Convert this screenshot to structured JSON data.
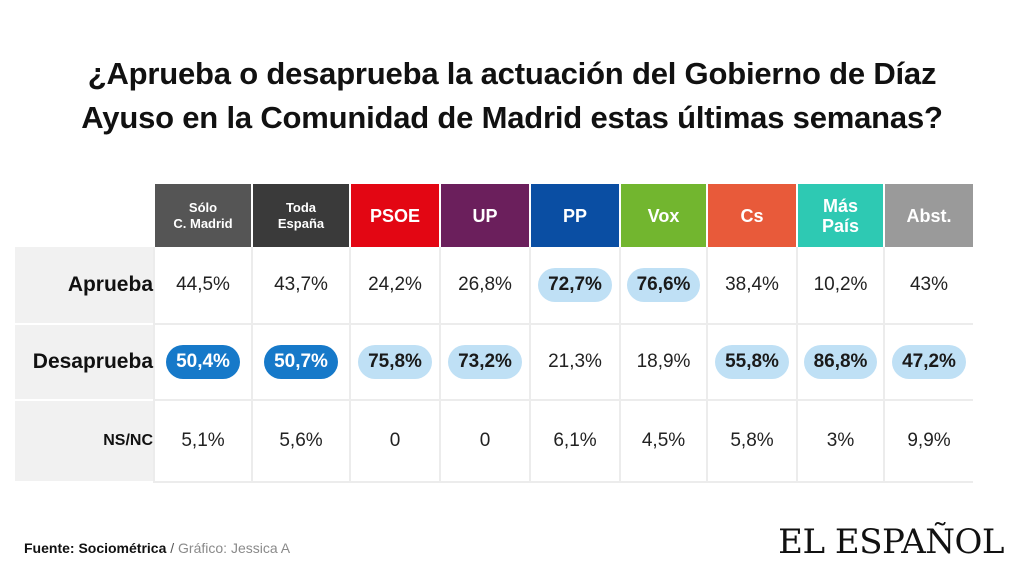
{
  "title": {
    "line1": "¿Aprueba o desaprueba la actuación del Gobierno de Díaz",
    "line2": "Ayuso en la Comunidad de Madrid estas últimas semanas?"
  },
  "chart_data": {
    "type": "table",
    "columns": [
      {
        "line1": "Sólo",
        "line2": "C. Madrid",
        "color": "#555555",
        "small": true
      },
      {
        "line1": "Toda",
        "line2": "España",
        "color": "#3a3a3a",
        "small": true
      },
      {
        "line1": "PSOE",
        "line2": "",
        "color": "#e30613",
        "small": false
      },
      {
        "line1": "UP",
        "line2": "",
        "color": "#6b1f5c",
        "small": false
      },
      {
        "line1": "PP",
        "line2": "",
        "color": "#0a4ea3",
        "small": false
      },
      {
        "line1": "Vox",
        "line2": "",
        "color": "#72b62f",
        "small": false
      },
      {
        "line1": "Cs",
        "line2": "",
        "color": "#e85a3a",
        "small": false
      },
      {
        "line1": "Más",
        "line2": "País",
        "color": "#2ec9b3",
        "small": false
      },
      {
        "line1": "Abst.",
        "line2": "",
        "color": "#9a9a9a",
        "small": false
      }
    ],
    "rows": [
      {
        "label": "Aprueba",
        "values": [
          "44,5%",
          "43,7%",
          "24,2%",
          "26,8%",
          "72,7%",
          "76,6%",
          "38,4%",
          "10,2%",
          "43%"
        ],
        "highlight": [
          "",
          "",
          "",
          "",
          "light",
          "light",
          "",
          "",
          ""
        ]
      },
      {
        "label": "Desaprueba",
        "values": [
          "50,4%",
          "50,7%",
          "75,8%",
          "73,2%",
          "21,3%",
          "18,9%",
          "55,8%",
          "86,8%",
          "47,2%"
        ],
        "highlight": [
          "dark",
          "dark",
          "light",
          "light",
          "",
          "",
          "light",
          "light",
          "light"
        ]
      },
      {
        "label": "NS/NC",
        "values": [
          "5,1%",
          "5,6%",
          "0",
          "0",
          "6,1%",
          "4,5%",
          "5,8%",
          "3%",
          "9,9%"
        ],
        "highlight": [
          "",
          "",
          "",
          "",
          "",
          "",
          "",
          "",
          ""
        ]
      }
    ]
  },
  "footer": {
    "source": "Fuente: Sociométrica",
    "separator": " / ",
    "credit": "Gráfico: Jessica A"
  },
  "brand": "EL ESPAÑOL"
}
